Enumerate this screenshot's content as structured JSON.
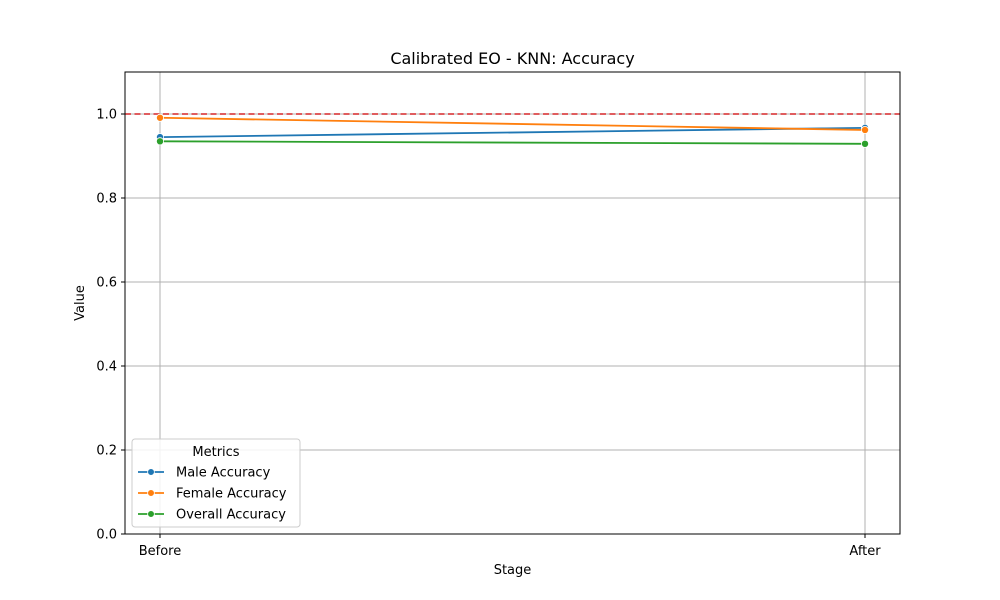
{
  "chart_data": {
    "type": "line",
    "title": "Calibrated EO - KNN: Accuracy",
    "xlabel": "Stage",
    "ylabel": "Value",
    "categories": [
      "Before",
      "After"
    ],
    "ylim": [
      0,
      1.1
    ],
    "yticks": [
      0.0,
      0.2,
      0.4,
      0.6,
      0.8,
      1.0
    ],
    "ytick_labels": [
      "0.0",
      "0.2",
      "0.4",
      "0.6",
      "0.8",
      "1.0"
    ],
    "grid": true,
    "reference_line": {
      "y": 1.0,
      "color": "#d62728",
      "style": "dashed"
    },
    "legend": {
      "title": "Metrics",
      "placement": "lower-left"
    },
    "series": [
      {
        "name": "Male Accuracy",
        "values": [
          0.945,
          0.967
        ],
        "color": "#1f77b4"
      },
      {
        "name": "Female Accuracy",
        "values": [
          0.991,
          0.962
        ],
        "color": "#ff7f0e"
      },
      {
        "name": "Overall Accuracy",
        "values": [
          0.935,
          0.929
        ],
        "color": "#2ca02c"
      }
    ]
  }
}
